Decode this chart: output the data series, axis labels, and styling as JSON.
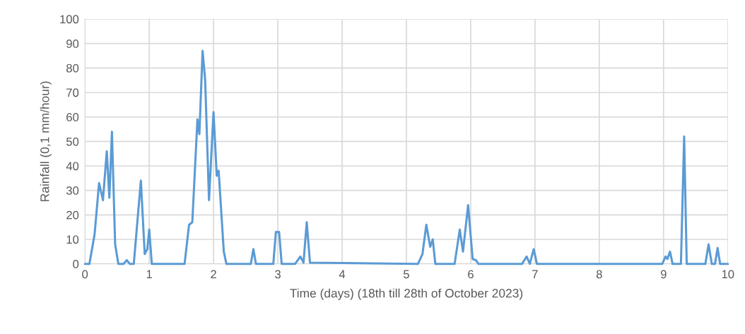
{
  "chart_data": {
    "type": "line",
    "xlabel": "Time (days) (18th till 28th of October 2023)",
    "ylabel": "Rainfall (0,1 mm/hour)",
    "xlim": [
      0,
      10
    ],
    "xticks": [
      0,
      1,
      2,
      3,
      4,
      5,
      6,
      7,
      8,
      9,
      10
    ],
    "ylim": [
      0,
      100
    ],
    "yticks": [
      0,
      10,
      20,
      30,
      40,
      50,
      60,
      70,
      80,
      90,
      100
    ],
    "grid": true,
    "legend": false,
    "marker": "none",
    "line_style": "solid",
    "series": [
      {
        "color": "#5b9bd5",
        "x": [
          0,
          0.07,
          0.15,
          0.22,
          0.28,
          0.34,
          0.38,
          0.42,
          0.47,
          0.52,
          0.6,
          0.65,
          0.7,
          0.76,
          0.87,
          0.93,
          0.97,
          1.0,
          1.04,
          1.55,
          1.62,
          1.67,
          1.75,
          1.78,
          1.83,
          1.87,
          1.93,
          2.0,
          2.05,
          2.08,
          2.16,
          2.2,
          2.58,
          2.62,
          2.66,
          2.93,
          2.97,
          3.02,
          3.06,
          3.27,
          3.35,
          3.4,
          3.45,
          3.5,
          5.18,
          5.25,
          5.31,
          5.37,
          5.41,
          5.45,
          5.75,
          5.83,
          5.88,
          5.96,
          6.03,
          6.08,
          6.12,
          6.8,
          6.87,
          6.92,
          6.98,
          7.03,
          8.98,
          9.03,
          9.06,
          9.1,
          9.14,
          9.27,
          9.32,
          9.36,
          9.65,
          9.7,
          9.75,
          9.8,
          9.84,
          9.88,
          10
        ],
        "values": [
          0,
          0,
          12,
          33,
          26,
          46,
          27,
          54,
          8,
          0,
          0,
          1.5,
          0,
          0,
          34,
          4,
          6,
          14,
          0,
          0,
          16,
          17,
          59,
          53,
          87,
          75,
          26,
          62,
          36,
          38,
          5,
          0,
          0,
          6,
          0,
          0,
          13,
          13,
          0,
          0,
          3,
          0.5,
          17,
          0.5,
          0,
          4,
          16,
          7,
          10,
          0,
          0,
          14,
          5,
          24,
          2,
          1.5,
          0,
          0,
          3,
          0,
          6,
          0,
          0,
          3,
          2,
          5,
          0,
          0,
          52,
          0,
          0,
          8,
          0,
          0,
          6.5,
          0,
          0
        ]
      }
    ]
  }
}
